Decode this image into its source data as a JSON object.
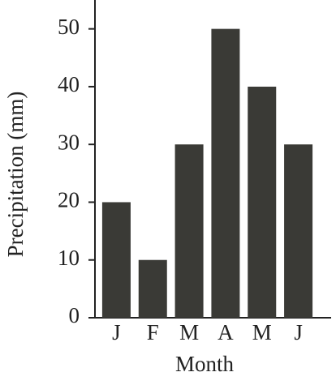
{
  "chart_data": {
    "type": "bar",
    "x_label": "Month",
    "y_label": "Precipitation (mm)",
    "categories": [
      "J",
      "F",
      "M",
      "A",
      "M",
      "J"
    ],
    "values": [
      20,
      10,
      30,
      50,
      40,
      30
    ],
    "color": "#3a3a36",
    "ylim": [
      0,
      55
    ],
    "yticks": [
      0,
      10,
      20,
      30,
      40,
      50
    ]
  }
}
